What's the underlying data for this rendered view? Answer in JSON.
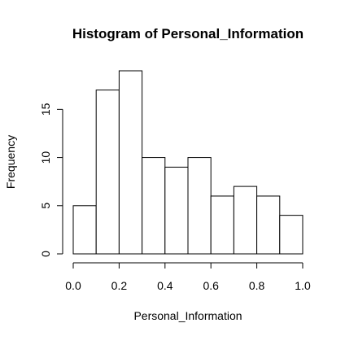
{
  "chart_data": {
    "type": "bar",
    "title": "Histogram of Personal_Information",
    "xlabel": "Personal_Information",
    "ylabel": "Frequency",
    "bins": [
      {
        "start": 0.0,
        "end": 0.1,
        "count": 5
      },
      {
        "start": 0.1,
        "end": 0.2,
        "count": 17
      },
      {
        "start": 0.2,
        "end": 0.3,
        "count": 19
      },
      {
        "start": 0.3,
        "end": 0.4,
        "count": 10
      },
      {
        "start": 0.4,
        "end": 0.5,
        "count": 9
      },
      {
        "start": 0.5,
        "end": 0.6,
        "count": 10
      },
      {
        "start": 0.6,
        "end": 0.7,
        "count": 6
      },
      {
        "start": 0.7,
        "end": 0.8,
        "count": 7
      },
      {
        "start": 0.8,
        "end": 0.9,
        "count": 6
      },
      {
        "start": 0.9,
        "end": 1.0,
        "count": 4
      }
    ],
    "xticks": [
      "0.0",
      "0.2",
      "0.4",
      "0.6",
      "0.8",
      "1.0"
    ],
    "yticks": [
      "0",
      "5",
      "10",
      "15"
    ],
    "xlim": [
      0.0,
      1.0
    ],
    "ylim": [
      0,
      19
    ],
    "grid": false,
    "bar_fill": "#ffffff",
    "bar_stroke": "#000000"
  }
}
